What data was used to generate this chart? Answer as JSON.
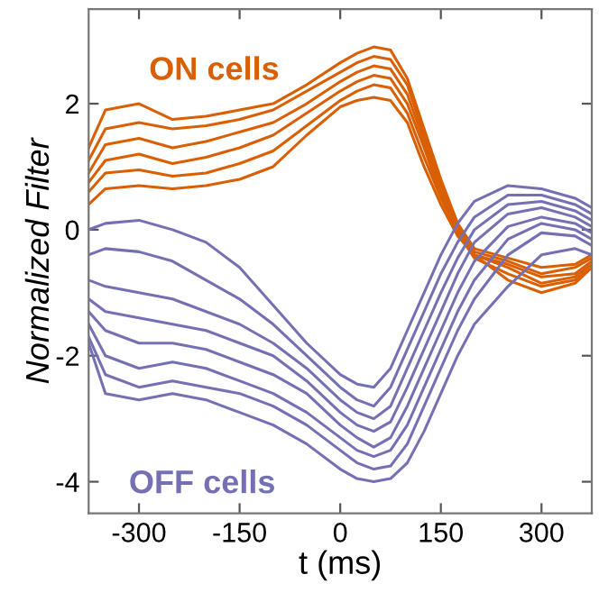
{
  "chart_data": {
    "type": "line",
    "xlabel": "t (ms)",
    "ylabel": "Normalized Filter",
    "x": [
      -375,
      -350,
      -300,
      -250,
      -200,
      -150,
      -100,
      -50,
      0,
      25,
      50,
      75,
      100,
      125,
      150,
      175,
      200,
      250,
      300,
      350,
      375
    ],
    "xlim": [
      -375,
      375
    ],
    "xticks": [
      -300,
      -150,
      0,
      150,
      300
    ],
    "ylim": [
      -4.5,
      3.5
    ],
    "yticks": [
      -4,
      -2,
      0,
      2
    ],
    "grid": false,
    "legend": false,
    "marker": "none",
    "line_style": "solid",
    "series": [
      {
        "name": "ON cells",
        "color": "#d95f02",
        "values": [
          1.3,
          1.9,
          2.0,
          1.75,
          1.8,
          1.9,
          2.0,
          2.3,
          2.65,
          2.8,
          2.9,
          2.85,
          2.4,
          1.6,
          0.8,
          0.1,
          -0.3,
          -0.45,
          -0.6,
          -0.55,
          -0.4
        ]
      },
      {
        "color": "#d95f02",
        "values": [
          1.1,
          1.6,
          1.7,
          1.6,
          1.65,
          1.75,
          1.9,
          2.2,
          2.5,
          2.65,
          2.75,
          2.7,
          2.3,
          1.5,
          0.7,
          0.05,
          -0.35,
          -0.5,
          -0.7,
          -0.6,
          -0.45
        ]
      },
      {
        "color": "#d95f02",
        "values": [
          0.9,
          1.35,
          1.45,
          1.3,
          1.4,
          1.55,
          1.7,
          2.0,
          2.35,
          2.5,
          2.6,
          2.55,
          2.15,
          1.4,
          0.6,
          0.0,
          -0.4,
          -0.55,
          -0.75,
          -0.7,
          -0.5
        ]
      },
      {
        "color": "#d95f02",
        "values": [
          0.75,
          1.1,
          1.2,
          1.05,
          1.15,
          1.3,
          1.5,
          1.85,
          2.2,
          2.35,
          2.45,
          2.4,
          2.0,
          1.3,
          0.55,
          -0.05,
          -0.4,
          -0.6,
          -0.85,
          -0.75,
          -0.55
        ]
      },
      {
        "color": "#d95f02",
        "values": [
          0.6,
          0.9,
          0.95,
          0.85,
          0.9,
          1.05,
          1.25,
          1.65,
          2.05,
          2.2,
          2.3,
          2.25,
          1.85,
          1.15,
          0.5,
          -0.05,
          -0.45,
          -0.7,
          -0.9,
          -0.8,
          -0.6
        ]
      },
      {
        "color": "#d95f02",
        "values": [
          0.4,
          0.65,
          0.7,
          0.65,
          0.7,
          0.8,
          1.0,
          1.5,
          1.95,
          2.05,
          2.1,
          2.05,
          1.7,
          1.0,
          0.4,
          -0.1,
          -0.4,
          -0.8,
          -1.0,
          -0.85,
          -0.6
        ]
      },
      {
        "name": "OFF cells",
        "color": "#7570b3",
        "values": [
          0.0,
          0.1,
          0.15,
          0.0,
          -0.2,
          -0.6,
          -1.2,
          -1.8,
          -2.3,
          -2.45,
          -2.5,
          -2.2,
          -1.6,
          -1.0,
          -0.4,
          0.1,
          0.45,
          0.7,
          0.65,
          0.5,
          0.35
        ]
      },
      {
        "color": "#7570b3",
        "values": [
          -0.4,
          -0.3,
          -0.35,
          -0.5,
          -0.8,
          -1.1,
          -1.5,
          -2.0,
          -2.5,
          -2.7,
          -2.8,
          -2.5,
          -1.9,
          -1.3,
          -0.7,
          -0.2,
          0.2,
          0.55,
          0.55,
          0.4,
          0.25
        ]
      },
      {
        "color": "#7570b3",
        "values": [
          -0.8,
          -0.9,
          -1.0,
          -1.1,
          -1.3,
          -1.5,
          -1.8,
          -2.2,
          -2.7,
          -2.9,
          -3.0,
          -2.8,
          -2.2,
          -1.6,
          -1.0,
          -0.45,
          0.0,
          0.4,
          0.45,
          0.3,
          0.15
        ]
      },
      {
        "color": "#7570b3",
        "values": [
          -1.1,
          -1.3,
          -1.4,
          -1.5,
          -1.6,
          -1.8,
          -2.0,
          -2.4,
          -2.9,
          -3.1,
          -3.2,
          -3.05,
          -2.5,
          -1.9,
          -1.3,
          -0.7,
          -0.2,
          0.25,
          0.35,
          0.2,
          0.05
        ]
      },
      {
        "color": "#7570b3",
        "values": [
          -1.3,
          -1.6,
          -1.8,
          -1.8,
          -1.9,
          -2.1,
          -2.3,
          -2.6,
          -3.1,
          -3.3,
          -3.45,
          -3.3,
          -2.8,
          -2.2,
          -1.6,
          -1.0,
          -0.5,
          0.05,
          0.2,
          0.1,
          -0.05
        ]
      },
      {
        "color": "#7570b3",
        "values": [
          -1.5,
          -2.0,
          -2.2,
          -2.1,
          -2.2,
          -2.4,
          -2.6,
          -2.9,
          -3.3,
          -3.5,
          -3.6,
          -3.5,
          -3.1,
          -2.5,
          -1.9,
          -1.3,
          -0.8,
          -0.15,
          0.1,
          0.0,
          -0.15
        ]
      },
      {
        "color": "#7570b3",
        "values": [
          -1.7,
          -2.3,
          -2.5,
          -2.4,
          -2.5,
          -2.6,
          -2.8,
          -3.1,
          -3.5,
          -3.7,
          -3.8,
          -3.75,
          -3.4,
          -2.8,
          -2.2,
          -1.6,
          -1.1,
          -0.4,
          -0.05,
          -0.1,
          -0.25
        ]
      },
      {
        "color": "#7570b3",
        "values": [
          -1.8,
          -2.6,
          -2.7,
          -2.6,
          -2.7,
          -2.9,
          -3.1,
          -3.4,
          -3.8,
          -3.95,
          -4.0,
          -3.95,
          -3.7,
          -3.2,
          -2.6,
          -2.0,
          -1.5,
          -0.9,
          -0.4,
          -0.3,
          -0.4
        ]
      }
    ]
  }
}
